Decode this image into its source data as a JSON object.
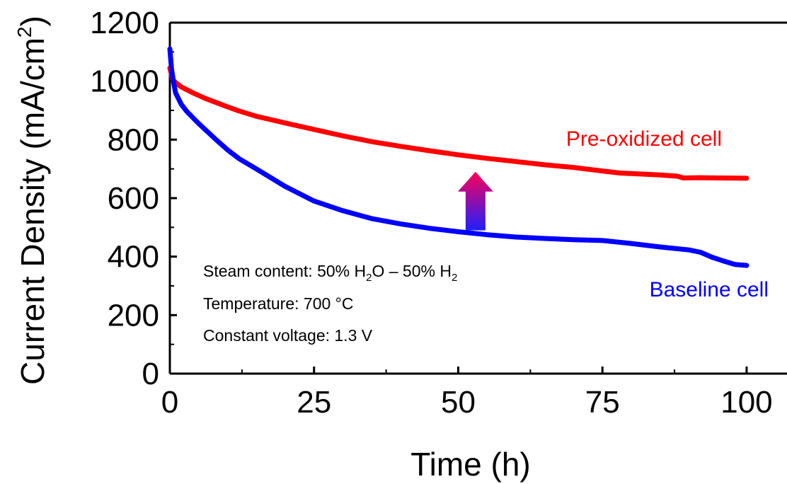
{
  "chart_data": {
    "type": "line",
    "xlabel": "Time (h)",
    "ylabel": "Current Density (mA/cm",
    "ylabel_sup": "2",
    "ylabel_tail": ")",
    "xlim": [
      0,
      107
    ],
    "ylim": [
      0,
      1200
    ],
    "xticks": [
      0,
      25,
      50,
      75,
      100
    ],
    "yticks": [
      0,
      200,
      400,
      600,
      800,
      1000,
      1200
    ],
    "x_minor_ticks": [
      12.5,
      37.5,
      62.5,
      87.5
    ],
    "y_minor_ticks": [
      100,
      300,
      500,
      700,
      900,
      1100
    ],
    "series": [
      {
        "name": "Pre-oxidized cell",
        "color": "#ff0000",
        "points": [
          [
            0,
            1045
          ],
          [
            0.5,
            1005
          ],
          [
            1,
            995
          ],
          [
            2,
            980
          ],
          [
            4,
            960
          ],
          [
            6,
            942
          ],
          [
            8,
            927
          ],
          [
            10,
            912
          ],
          [
            12,
            898
          ],
          [
            15,
            880
          ],
          [
            20,
            857
          ],
          [
            25,
            835
          ],
          [
            30,
            813
          ],
          [
            35,
            793
          ],
          [
            40,
            777
          ],
          [
            45,
            762
          ],
          [
            50,
            748
          ],
          [
            55,
            736
          ],
          [
            60,
            725
          ],
          [
            65,
            714
          ],
          [
            70,
            705
          ],
          [
            72,
            700
          ],
          [
            75,
            693
          ],
          [
            78,
            686
          ],
          [
            80,
            684
          ],
          [
            85,
            679
          ],
          [
            88,
            675
          ],
          [
            89,
            669
          ],
          [
            92,
            670
          ],
          [
            95,
            669
          ],
          [
            100,
            668
          ]
        ]
      },
      {
        "name": "Baseline cell",
        "color": "#0000ff",
        "points": [
          [
            0,
            1110
          ],
          [
            0.3,
            1040
          ],
          [
            0.7,
            990
          ],
          [
            1,
            960
          ],
          [
            2,
            920
          ],
          [
            3,
            895
          ],
          [
            5,
            855
          ],
          [
            8,
            800
          ],
          [
            10,
            765
          ],
          [
            12,
            735
          ],
          [
            15,
            700
          ],
          [
            20,
            640
          ],
          [
            25,
            590
          ],
          [
            30,
            557
          ],
          [
            35,
            530
          ],
          [
            40,
            512
          ],
          [
            45,
            497
          ],
          [
            50,
            485
          ],
          [
            55,
            475
          ],
          [
            60,
            467
          ],
          [
            65,
            462
          ],
          [
            70,
            458
          ],
          [
            75,
            455
          ],
          [
            80,
            445
          ],
          [
            85,
            433
          ],
          [
            90,
            423
          ],
          [
            92,
            415
          ],
          [
            94,
            398
          ],
          [
            96,
            385
          ],
          [
            98,
            373
          ],
          [
            100,
            370
          ]
        ]
      }
    ],
    "annotations": {
      "pre_oxidized": "Pre-oxidized cell",
      "baseline": "Baseline cell",
      "steam_prefix": "Steam content: 50% H",
      "steam_sub1": "2",
      "steam_mid": "O – 50% H",
      "steam_sub2": "2",
      "temperature": "Temperature: 700 °C",
      "voltage": "Constant voltage: 1.3 V"
    },
    "arrow": {
      "x": 53,
      "y_from": 490,
      "y_to": 690,
      "direction": "up",
      "color_top": "#ff0055",
      "color_bottom": "#1f1fff"
    },
    "grid": false,
    "legend": "inline labels"
  }
}
